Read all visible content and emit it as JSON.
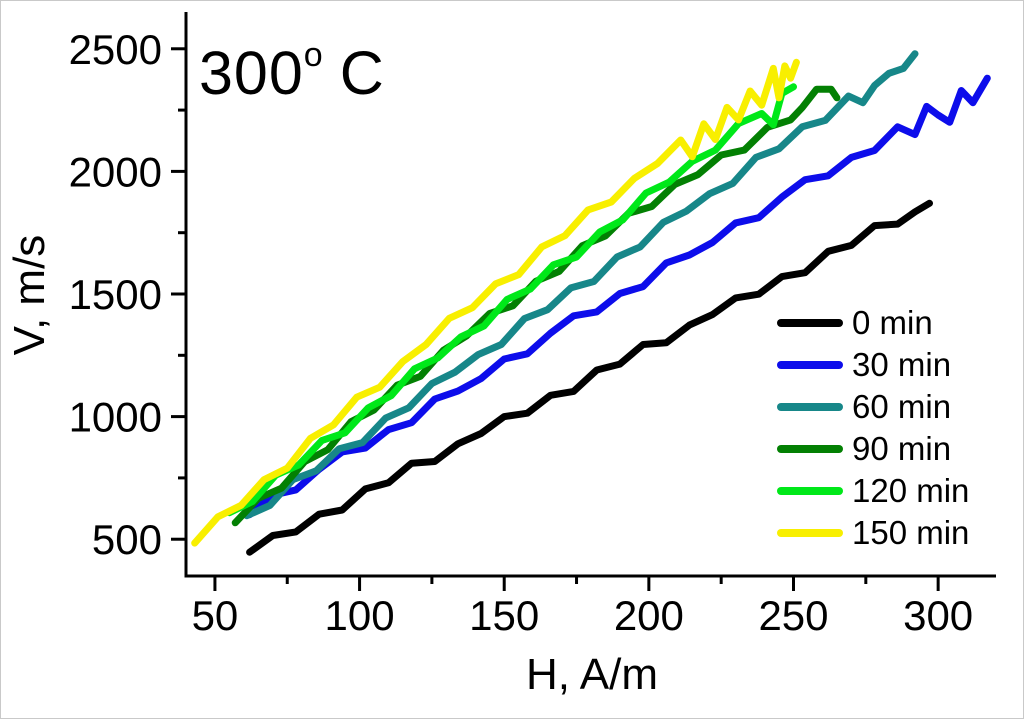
{
  "title": {
    "value": "300",
    "sup": "o",
    "unit": "C"
  },
  "chart_data": {
    "type": "line",
    "title": "300° C",
    "xlabel": "H, A/m",
    "ylabel": "V, m/s",
    "xlim": [
      40,
      320
    ],
    "ylim": [
      350,
      2650
    ],
    "x_ticks": [
      50,
      100,
      150,
      200,
      250,
      300
    ],
    "x_minor_ticks": [
      75,
      125,
      175,
      225,
      275
    ],
    "y_ticks": [
      500,
      1000,
      1500,
      2000,
      2500
    ],
    "y_minor_ticks": [
      750,
      1250,
      1750,
      2250
    ],
    "grid": false,
    "legend_position": "right-middle",
    "series": [
      {
        "name": "0 min",
        "color": "#000000",
        "points": [
          [
            62,
            447
          ],
          [
            70,
            515
          ],
          [
            78,
            530
          ],
          [
            86,
            602
          ],
          [
            94,
            619
          ],
          [
            102,
            705
          ],
          [
            110,
            730
          ],
          [
            118,
            810
          ],
          [
            126,
            817
          ],
          [
            134,
            889
          ],
          [
            142,
            931
          ],
          [
            150,
            1000
          ],
          [
            158,
            1014
          ],
          [
            166,
            1087
          ],
          [
            174,
            1103
          ],
          [
            182,
            1190
          ],
          [
            190,
            1214
          ],
          [
            198,
            1294
          ],
          [
            206,
            1301
          ],
          [
            214,
            1373
          ],
          [
            222,
            1416
          ],
          [
            230,
            1484
          ],
          [
            238,
            1499
          ],
          [
            246,
            1571
          ],
          [
            254,
            1587
          ],
          [
            262,
            1674
          ],
          [
            270,
            1698
          ],
          [
            278,
            1779
          ],
          [
            286,
            1785
          ],
          [
            292,
            1835
          ],
          [
            297,
            1870
          ]
        ]
      },
      {
        "name": "30 min",
        "color": "#0d0deb",
        "points": [
          [
            62,
            600
          ],
          [
            70,
            680
          ],
          [
            78,
            701
          ],
          [
            86,
            785
          ],
          [
            94,
            856
          ],
          [
            102,
            872
          ],
          [
            110,
            947
          ],
          [
            118,
            975
          ],
          [
            126,
            1072
          ],
          [
            134,
            1104
          ],
          [
            142,
            1155
          ],
          [
            150,
            1235
          ],
          [
            158,
            1256
          ],
          [
            166,
            1340
          ],
          [
            174,
            1411
          ],
          [
            182,
            1427
          ],
          [
            190,
            1502
          ],
          [
            198,
            1530
          ],
          [
            206,
            1627
          ],
          [
            214,
            1659
          ],
          [
            222,
            1710
          ],
          [
            230,
            1790
          ],
          [
            238,
            1811
          ],
          [
            246,
            1895
          ],
          [
            254,
            1966
          ],
          [
            262,
            1982
          ],
          [
            270,
            2057
          ],
          [
            278,
            2085
          ],
          [
            286,
            2182
          ],
          [
            292,
            2150
          ],
          [
            296,
            2265
          ],
          [
            300,
            2230
          ],
          [
            304,
            2200
          ],
          [
            308,
            2330
          ],
          [
            312,
            2280
          ],
          [
            317,
            2380
          ]
        ]
      },
      {
        "name": "60 min",
        "color": "#178789",
        "points": [
          [
            61,
            596
          ],
          [
            69,
            638
          ],
          [
            77,
            743
          ],
          [
            85,
            779
          ],
          [
            93,
            869
          ],
          [
            101,
            894
          ],
          [
            109,
            994
          ],
          [
            117,
            1036
          ],
          [
            125,
            1135
          ],
          [
            133,
            1181
          ],
          [
            141,
            1253
          ],
          [
            149,
            1294
          ],
          [
            157,
            1400
          ],
          [
            165,
            1436
          ],
          [
            173,
            1525
          ],
          [
            181,
            1551
          ],
          [
            189,
            1651
          ],
          [
            197,
            1692
          ],
          [
            205,
            1792
          ],
          [
            213,
            1838
          ],
          [
            221,
            1909
          ],
          [
            229,
            1951
          ],
          [
            237,
            2057
          ],
          [
            245,
            2092
          ],
          [
            253,
            2182
          ],
          [
            261,
            2208
          ],
          [
            269,
            2307
          ],
          [
            274,
            2280
          ],
          [
            278,
            2350
          ],
          [
            283,
            2400
          ],
          [
            288,
            2420
          ],
          [
            292,
            2480
          ]
        ]
      },
      {
        "name": "90 min",
        "color": "#038003",
        "points": [
          [
            57,
            567
          ],
          [
            65,
            667
          ],
          [
            73,
            708
          ],
          [
            81,
            816
          ],
          [
            89,
            865
          ],
          [
            97,
            979
          ],
          [
            105,
            1027
          ],
          [
            113,
            1128
          ],
          [
            121,
            1164
          ],
          [
            129,
            1271
          ],
          [
            137,
            1329
          ],
          [
            145,
            1421
          ],
          [
            153,
            1452
          ],
          [
            161,
            1552
          ],
          [
            169,
            1592
          ],
          [
            177,
            1697
          ],
          [
            185,
            1737
          ],
          [
            193,
            1829
          ],
          [
            201,
            1857
          ],
          [
            209,
            1947
          ],
          [
            217,
            1987
          ],
          [
            225,
            2067
          ],
          [
            233,
            2087
          ],
          [
            241,
            2180
          ],
          [
            249,
            2210
          ],
          [
            253,
            2260
          ],
          [
            258,
            2335
          ],
          [
            263,
            2335
          ],
          [
            265,
            2300
          ]
        ]
      },
      {
        "name": "120 min",
        "color": "#00e819",
        "points": [
          [
            55,
            608
          ],
          [
            63,
            654
          ],
          [
            71,
            761
          ],
          [
            79,
            803
          ],
          [
            87,
            903
          ],
          [
            95,
            934
          ],
          [
            103,
            1036
          ],
          [
            111,
            1086
          ],
          [
            119,
            1195
          ],
          [
            127,
            1239
          ],
          [
            135,
            1325
          ],
          [
            143,
            1370
          ],
          [
            151,
            1478
          ],
          [
            159,
            1520
          ],
          [
            167,
            1619
          ],
          [
            175,
            1651
          ],
          [
            183,
            1753
          ],
          [
            191,
            1802
          ],
          [
            199,
            1912
          ],
          [
            207,
            1956
          ],
          [
            215,
            2041
          ],
          [
            223,
            2087
          ],
          [
            231,
            2195
          ],
          [
            239,
            2236
          ],
          [
            243,
            2190
          ],
          [
            246,
            2318
          ],
          [
            250,
            2345
          ]
        ]
      },
      {
        "name": "150 min",
        "color": "#f8ef00",
        "points": [
          [
            43,
            484
          ],
          [
            51,
            591
          ],
          [
            59,
            638
          ],
          [
            67,
            743
          ],
          [
            75,
            790
          ],
          [
            83,
            911
          ],
          [
            91,
            966
          ],
          [
            99,
            1079
          ],
          [
            107,
            1120
          ],
          [
            115,
            1225
          ],
          [
            123,
            1294
          ],
          [
            131,
            1401
          ],
          [
            139,
            1444
          ],
          [
            147,
            1541
          ],
          [
            155,
            1579
          ],
          [
            163,
            1692
          ],
          [
            171,
            1738
          ],
          [
            179,
            1843
          ],
          [
            187,
            1875
          ],
          [
            195,
            1972
          ],
          [
            203,
            2032
          ],
          [
            211,
            2128
          ],
          [
            215,
            2060
          ],
          [
            219,
            2194
          ],
          [
            223,
            2130
          ],
          [
            227,
            2261
          ],
          [
            231,
            2210
          ],
          [
            235,
            2328
          ],
          [
            239,
            2270
          ],
          [
            243,
            2420
          ],
          [
            245,
            2300
          ],
          [
            247,
            2430
          ],
          [
            249,
            2380
          ],
          [
            251,
            2445
          ]
        ]
      }
    ]
  }
}
